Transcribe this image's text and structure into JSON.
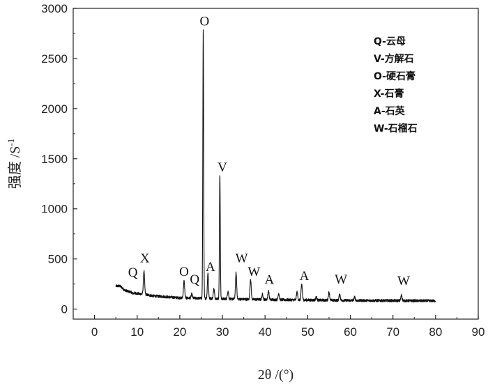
{
  "chart_data": {
    "type": "line",
    "title": "",
    "xlabel": "2θ /(°)",
    "ylabel": "强度 /S",
    "ylabel_superscript": "-1",
    "xlim": [
      -5,
      90
    ],
    "ylim": [
      -100,
      3000
    ],
    "x_ticks": [
      0,
      10,
      20,
      30,
      40,
      50,
      60,
      70,
      80,
      90
    ],
    "y_ticks": [
      0,
      500,
      1000,
      1500,
      2000,
      2500,
      3000
    ],
    "x_tick_labels": [
      "0",
      "10",
      "20",
      "30",
      "40",
      "50",
      "60",
      "70",
      "80",
      "90"
    ],
    "y_tick_labels": [
      "0",
      "500",
      "1000",
      "1500",
      "2000",
      "2500",
      "3000"
    ],
    "grid": false,
    "legend_position": "top-right",
    "legend_entries": [
      "Q-云母",
      "V-方解石",
      "O-硬石膏",
      "X-石膏",
      "A-石英",
      "W-石榴石"
    ],
    "background_points": [
      [
        5.0,
        230
      ],
      [
        6.0,
        230
      ],
      [
        7.0,
        190
      ],
      [
        8.0,
        175
      ],
      [
        9.0,
        165
      ],
      [
        10.0,
        155
      ],
      [
        12.0,
        145
      ],
      [
        14.0,
        130
      ],
      [
        16.0,
        125
      ],
      [
        18.0,
        118
      ],
      [
        20.0,
        112
      ],
      [
        22.0,
        110
      ],
      [
        25.0,
        108
      ],
      [
        28.0,
        105
      ],
      [
        30.0,
        102
      ],
      [
        35.0,
        98
      ],
      [
        40.0,
        95
      ],
      [
        45.0,
        92
      ],
      [
        50.0,
        90
      ],
      [
        55.0,
        88
      ],
      [
        60.0,
        86
      ],
      [
        65.0,
        85
      ],
      [
        70.0,
        84
      ],
      [
        75.0,
        83
      ],
      [
        80.0,
        82
      ]
    ],
    "peaks": [
      {
        "x": 9.0,
        "y": 155,
        "w": 0.25
      },
      {
        "x": 11.6,
        "y": 380,
        "w": 0.2
      },
      {
        "x": 21.0,
        "y": 280,
        "w": 0.2
      },
      {
        "x": 22.8,
        "y": 150,
        "w": 0.2
      },
      {
        "x": 25.5,
        "y": 2800,
        "w": 0.14
      },
      {
        "x": 26.6,
        "y": 360,
        "w": 0.18
      },
      {
        "x": 28.0,
        "y": 200,
        "w": 0.2
      },
      {
        "x": 29.4,
        "y": 1340,
        "w": 0.14
      },
      {
        "x": 31.3,
        "y": 180,
        "w": 0.2
      },
      {
        "x": 33.2,
        "y": 360,
        "w": 0.2
      },
      {
        "x": 36.6,
        "y": 300,
        "w": 0.2
      },
      {
        "x": 39.4,
        "y": 150,
        "w": 0.2
      },
      {
        "x": 40.8,
        "y": 180,
        "w": 0.2
      },
      {
        "x": 43.2,
        "y": 160,
        "w": 0.2
      },
      {
        "x": 47.5,
        "y": 170,
        "w": 0.2
      },
      {
        "x": 48.6,
        "y": 250,
        "w": 0.2
      },
      {
        "x": 52.0,
        "y": 120,
        "w": 0.2
      },
      {
        "x": 55.0,
        "y": 170,
        "w": 0.2
      },
      {
        "x": 57.5,
        "y": 150,
        "w": 0.2
      },
      {
        "x": 61.0,
        "y": 120,
        "w": 0.2
      },
      {
        "x": 72.0,
        "y": 140,
        "w": 0.2
      }
    ],
    "annotations": [
      {
        "text": "Q",
        "x": 9.0,
        "y": 325
      },
      {
        "text": "X",
        "x": 11.8,
        "y": 465
      },
      {
        "text": "O",
        "x": 21.0,
        "y": 330
      },
      {
        "text": "Q",
        "x": 23.5,
        "y": 255
      },
      {
        "text": "O",
        "x": 25.8,
        "y": 2830
      },
      {
        "text": "A",
        "x": 27.2,
        "y": 380
      },
      {
        "text": "V",
        "x": 30.0,
        "y": 1375
      },
      {
        "text": "W",
        "x": 34.5,
        "y": 465
      },
      {
        "text": "W",
        "x": 37.4,
        "y": 330
      },
      {
        "text": "A",
        "x": 41.0,
        "y": 250
      },
      {
        "text": "A",
        "x": 49.2,
        "y": 290
      },
      {
        "text": "W",
        "x": 57.8,
        "y": 255
      },
      {
        "text": "W",
        "x": 72.5,
        "y": 240
      }
    ]
  }
}
